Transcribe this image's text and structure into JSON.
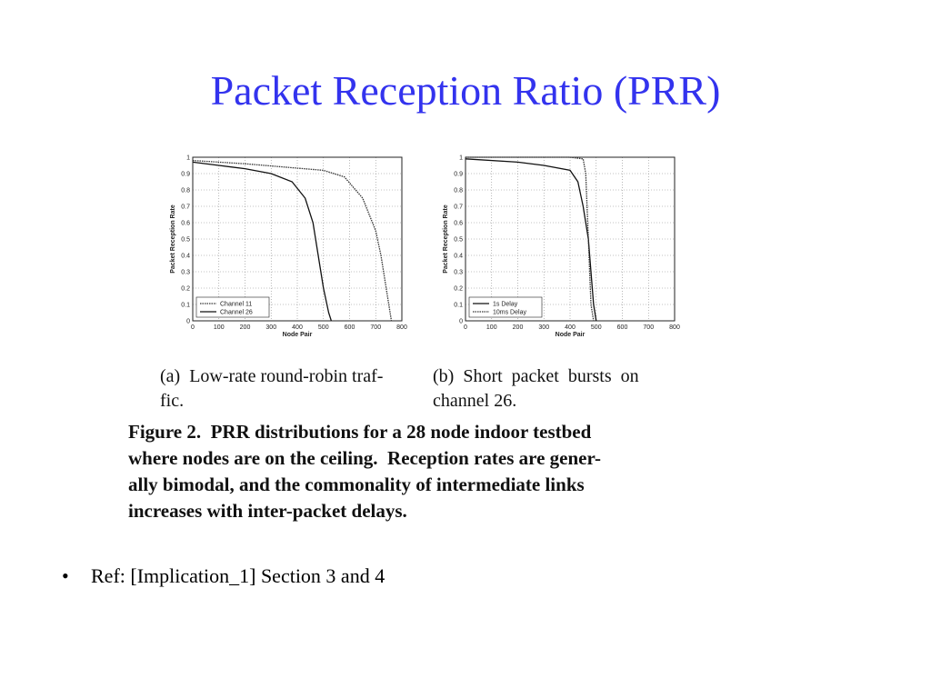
{
  "slide_title": "Packet Reception Ratio (PRR)",
  "chart_data": [
    {
      "type": "line",
      "xlabel": "Node Pair",
      "ylabel": "Packet Reception Rate",
      "xlim": [
        0,
        800
      ],
      "xticks": [
        0,
        100,
        200,
        300,
        400,
        500,
        600,
        700,
        800
      ],
      "ylim": [
        0,
        1
      ],
      "yticks": [
        0,
        0.1,
        0.2,
        0.3,
        0.4,
        0.5,
        0.6,
        0.7,
        0.8,
        0.9,
        1
      ],
      "grid": true,
      "legend": "lower left",
      "series": [
        {
          "name": "Channel 11",
          "color": "#333333",
          "line_style": "dotted",
          "x": [
            0,
            200,
            350,
            500,
            580,
            650,
            700,
            720,
            740,
            760
          ],
          "values": [
            0.98,
            0.96,
            0.94,
            0.92,
            0.88,
            0.75,
            0.55,
            0.4,
            0.2,
            0
          ]
        },
        {
          "name": "Channel 26",
          "color": "#111111",
          "line_style": "solid",
          "x": [
            0,
            100,
            200,
            300,
            380,
            430,
            460,
            480,
            500,
            520,
            530
          ],
          "values": [
            0.97,
            0.95,
            0.93,
            0.9,
            0.85,
            0.75,
            0.6,
            0.4,
            0.2,
            0.05,
            0
          ]
        }
      ]
    },
    {
      "type": "line",
      "xlabel": "Node Pair",
      "ylabel": "Packet Reception Rate",
      "xlim": [
        0,
        800
      ],
      "xticks": [
        0,
        100,
        200,
        300,
        400,
        500,
        600,
        700,
        800
      ],
      "ylim": [
        0,
        1
      ],
      "yticks": [
        0,
        0.1,
        0.2,
        0.3,
        0.4,
        0.5,
        0.6,
        0.7,
        0.8,
        0.9,
        1
      ],
      "grid": true,
      "legend": "lower left",
      "series": [
        {
          "name": "1s Delay",
          "color": "#111111",
          "line_style": "solid",
          "x": [
            0,
            200,
            300,
            400,
            430,
            450,
            470,
            480,
            490,
            500
          ],
          "values": [
            0.99,
            0.97,
            0.95,
            0.92,
            0.85,
            0.7,
            0.5,
            0.3,
            0.1,
            0
          ]
        },
        {
          "name": "10ms Delay",
          "color": "#333333",
          "line_style": "dotted",
          "x": [
            0,
            400,
            450,
            460,
            470,
            480,
            490
          ],
          "values": [
            1,
            1,
            0.99,
            0.9,
            0.5,
            0.1,
            0
          ]
        }
      ]
    }
  ],
  "subcaptions": [
    [
      "(a)  Low-rate round-robin traf-",
      "fic."
    ],
    [
      "(b)  Short  packet  bursts  on",
      "channel 26."
    ]
  ],
  "figure_caption": [
    "Figure 2.  PRR distributions for a 28 node indoor testbed",
    "where nodes are on the ceiling.  Reception rates are gener-",
    "ally bimodal, and the commonality of intermediate links",
    "increases with inter-packet delays."
  ],
  "bullet": "Ref: [Implication_1] Section 3 and 4"
}
